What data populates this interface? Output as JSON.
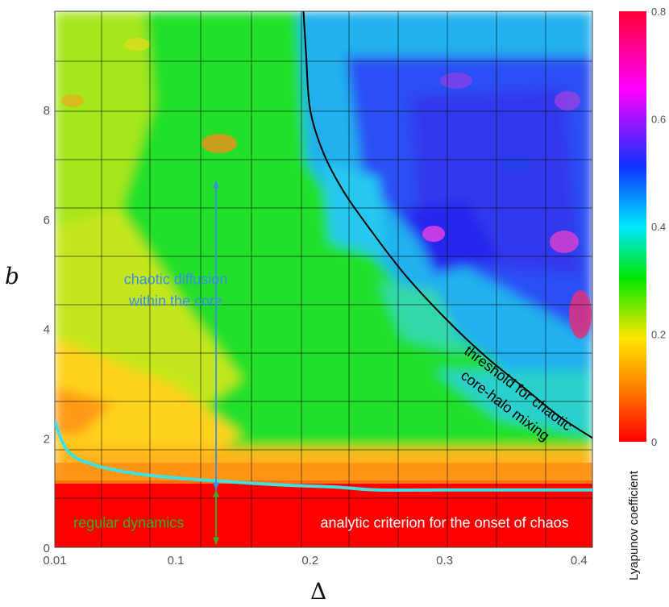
{
  "chart_data": {
    "type": "heatmap",
    "title": "",
    "xlabel": "Δ",
    "ylabel": "b",
    "xlim": [
      0.01,
      0.41
    ],
    "ylim": [
      0,
      9.8
    ],
    "x_ticks": [
      {
        "value": 0.01,
        "label": "0.01"
      },
      {
        "value": 0.1,
        "label": "0.1"
      },
      {
        "value": 0.2,
        "label": "0.2"
      },
      {
        "value": 0.3,
        "label": "0.3"
      },
      {
        "value": 0.4,
        "label": "0.4"
      }
    ],
    "y_ticks": [
      {
        "value": 0,
        "label": "0"
      },
      {
        "value": 2,
        "label": "2"
      },
      {
        "value": 4,
        "label": "4"
      },
      {
        "value": 6,
        "label": "6"
      },
      {
        "value": 8,
        "label": "8"
      }
    ],
    "grid": true,
    "colorbar": {
      "label": "Lyapunov coefficient",
      "range": [
        0,
        0.8
      ],
      "ticks": [
        {
          "value": 0,
          "label": "0"
        },
        {
          "value": 0.2,
          "label": "0.2"
        },
        {
          "value": 0.4,
          "label": "0.4"
        },
        {
          "value": 0.6,
          "label": "0.6"
        },
        {
          "value": 0.8,
          "label": "0.8"
        }
      ],
      "colors": [
        "#ff0000",
        "#ff7a00",
        "#ffe600",
        "#00e800",
        "#00e8ff",
        "#1030ff",
        "#ff00ff",
        "#ff0033"
      ]
    },
    "curves": [
      {
        "id": "analytic-criterion",
        "color": "#40e0e0",
        "points": [
          [
            0.01,
            2.3
          ],
          [
            0.02,
            1.75
          ],
          [
            0.04,
            1.5
          ],
          [
            0.07,
            1.35
          ],
          [
            0.1,
            1.27
          ],
          [
            0.14,
            1.2
          ],
          [
            0.18,
            1.14
          ],
          [
            0.22,
            1.1
          ],
          [
            0.25,
            1.05
          ],
          [
            0.3,
            1.05
          ],
          [
            0.35,
            1.05
          ],
          [
            0.41,
            1.05
          ]
        ]
      },
      {
        "id": "chaotic-mixing-threshold",
        "color": "#000000",
        "points": [
          [
            0.195,
            9.8
          ],
          [
            0.197,
            9.0
          ],
          [
            0.2,
            8.0
          ],
          [
            0.21,
            7.2
          ],
          [
            0.225,
            6.5
          ],
          [
            0.245,
            5.8
          ],
          [
            0.27,
            5.0
          ],
          [
            0.3,
            4.2
          ],
          [
            0.33,
            3.5
          ],
          [
            0.36,
            2.9
          ],
          [
            0.385,
            2.4
          ],
          [
            0.41,
            2.0
          ]
        ]
      }
    ],
    "arrows": [
      {
        "id": "chaotic-diffusion-arrow",
        "x": 0.13,
        "y_from": 1.05,
        "y_to": 6.7,
        "color": "#3a8ee8"
      },
      {
        "id": "regular-dynamics-arrow",
        "x": 0.13,
        "y_from": 1.05,
        "y_to": 0.05,
        "color": "#3cac2c"
      }
    ],
    "annotations": [
      {
        "id": "chaotic-diffusion",
        "lines": [
          "chaotic diffusion",
          "within the core"
        ],
        "x": 0.1,
        "y": 4.7,
        "color": "#3a8ee8"
      },
      {
        "id": "regular-dynamics",
        "lines": [
          "regular dynamics"
        ],
        "x": 0.065,
        "y": 0.45,
        "color": "#3cac2c"
      },
      {
        "id": "analytic-criterion",
        "lines": [
          "analytic criterion for the onset of chaos"
        ],
        "x": 0.3,
        "y": 0.45,
        "color": "#ffffff"
      },
      {
        "id": "threshold",
        "lines": [
          "threshold for chaotic",
          "core-halo mixing"
        ],
        "x": 0.35,
        "y": 2.75,
        "color": "#000000",
        "rotation_deg": 37
      }
    ]
  }
}
